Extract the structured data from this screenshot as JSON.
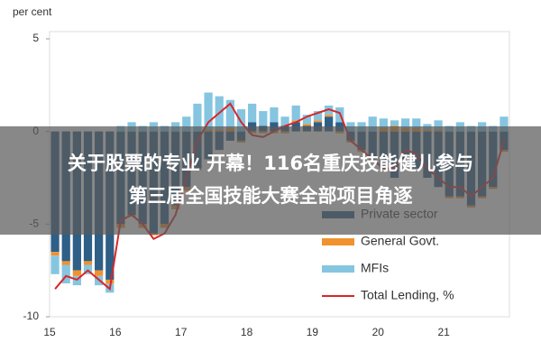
{
  "chart_data": {
    "type": "bar",
    "ylabel": "per cent",
    "categories": [
      "15",
      null,
      null,
      null,
      null,
      null,
      "16",
      null,
      null,
      null,
      null,
      null,
      "17",
      null,
      null,
      null,
      null,
      null,
      "18",
      null,
      null,
      null,
      null,
      null,
      "19",
      null,
      null,
      null,
      null,
      null,
      "20",
      null,
      null,
      null,
      null,
      null,
      "21",
      null,
      null,
      null,
      null,
      null
    ],
    "series": [
      {
        "name": "Private sector",
        "color": "#2e5f86",
        "values": [
          -6.5,
          -7,
          -7.5,
          -7,
          -7.5,
          -8,
          -5,
          -4.5,
          -5,
          -5.5,
          -5,
          -4,
          -3,
          -2,
          -1.5,
          -1,
          -0.5,
          -0.5,
          0.5,
          0.3,
          0.5,
          0.3,
          0.5,
          0.3,
          0.5,
          0.8,
          0.5,
          -0.5,
          -1,
          -1.5,
          -2,
          -2.5,
          -1.5,
          -2,
          -2.5,
          -3,
          -3.5,
          -3.5,
          -4,
          -3.5,
          -3,
          -1
        ]
      },
      {
        "name": "General Govt.",
        "color": "#f0922e",
        "values": [
          -0.2,
          -0.2,
          -0.3,
          -0.2,
          -0.3,
          -0.2,
          -0.2,
          -0.1,
          -0.2,
          -0.1,
          -0.2,
          -0.2,
          -0.2,
          -0.1,
          0.1,
          0.1,
          0.2,
          -0.1,
          -0.1,
          -0.1,
          -0.1,
          -0.1,
          0.1,
          0.1,
          0.1,
          0.1,
          -0.1,
          -0.1,
          -0.1,
          -0.1,
          0.2,
          0.3,
          0.2,
          0.2,
          0.1,
          0.1,
          -0.1,
          -0.1,
          -0.1,
          -0.1,
          -0.1,
          -0.1
        ]
      },
      {
        "name": "MFIs",
        "color": "#86c5e0",
        "values": [
          -1,
          -1,
          -0.5,
          -0.5,
          -0.5,
          -0.5,
          0.3,
          0.5,
          0.3,
          0.5,
          0.3,
          0.5,
          0.8,
          1.5,
          2,
          1.8,
          1.5,
          1.2,
          1,
          0.8,
          0.8,
          0.5,
          0.8,
          0.5,
          0.5,
          0.5,
          0.8,
          0.5,
          0.5,
          0.8,
          0.5,
          0.3,
          0.5,
          0.5,
          0.3,
          0.5,
          0.3,
          0.5,
          0.3,
          0.5,
          0.3,
          0.8
        ]
      },
      {
        "name": "Total Lending, %",
        "type": "line",
        "color": "#d9262a",
        "values": [
          -8.5,
          -7.8,
          -8,
          -7.5,
          -8,
          -8.5,
          -4.8,
          -4.5,
          -5,
          -5.8,
          -5.5,
          -4.5,
          -2.5,
          -0.5,
          0.5,
          1,
          1.5,
          0.5,
          -0.2,
          -0.3,
          0,
          0.3,
          0.5,
          0.8,
          1,
          1.2,
          1,
          -0.5,
          -1,
          -1.5,
          -2,
          -2,
          -1,
          -1.2,
          -2,
          -2.5,
          -3,
          -3,
          -3.5,
          -3,
          -2.5,
          -0.5
        ]
      }
    ],
    "ylim": [
      -10,
      5
    ],
    "yticks": [
      5,
      0,
      -5,
      -10
    ],
    "legend": "lower right"
  },
  "overlay": [
    "关于股票的专业 开幕！116名重庆技能健儿参与",
    "第三届全国技能大赛全部项目角逐"
  ]
}
